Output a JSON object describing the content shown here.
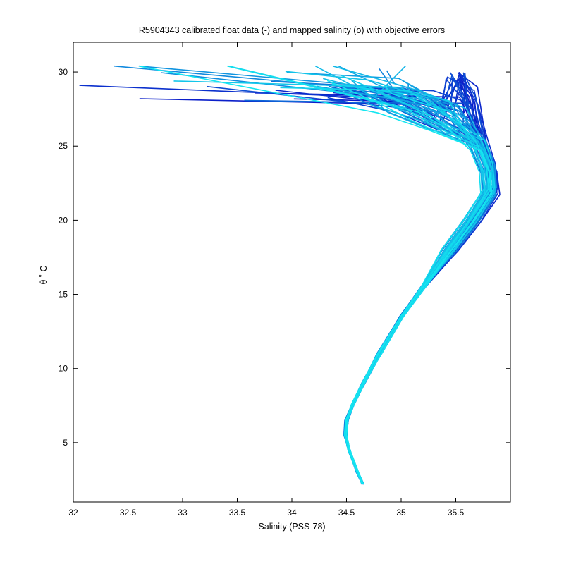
{
  "chart_data": {
    "type": "line",
    "title": "R5904343 calibrated float data (-) and mapped salinity (o) with objective errors",
    "xlabel": "Salinity (PSS-78)",
    "ylabel": "θ ˚ C",
    "xlim": [
      32.0,
      36.0
    ],
    "ylim": [
      1.0,
      32.0
    ],
    "xticks": [
      32,
      32.5,
      33,
      33.5,
      34,
      34.5,
      35,
      35.5
    ],
    "xtick_labels": [
      "32",
      "32.5",
      "33",
      "33.5",
      "34",
      "34.5",
      "35",
      "35.5"
    ],
    "yticks": [
      5,
      10,
      15,
      20,
      25,
      30
    ],
    "ytick_labels": [
      "5",
      "10",
      "15",
      "20",
      "25",
      "30"
    ],
    "grid": false,
    "legend": "none",
    "colors": {
      "dark": "#0a14c8",
      "light": "#14e6f0",
      "axis": "#000000"
    },
    "profile_count": 60,
    "representative_profile": {
      "salinity": [
        34.65,
        34.6,
        34.52,
        34.49,
        34.5,
        34.55,
        34.65,
        34.8,
        35.0,
        35.2,
        35.45,
        35.65,
        35.82,
        35.8,
        35.72,
        35.55,
        35.3,
        35.0,
        34.8
      ],
      "theta": [
        2.2,
        3.0,
        4.5,
        5.5,
        6.5,
        7.5,
        9.0,
        11.0,
        13.5,
        15.5,
        18.0,
        20.0,
        22.0,
        23.5,
        25.0,
        26.5,
        27.5,
        28.3,
        28.8
      ]
    },
    "surface_salinity_range": [
      32.05,
      34.7
    ],
    "surface_theta_range": [
      27.9,
      30.4
    ]
  }
}
